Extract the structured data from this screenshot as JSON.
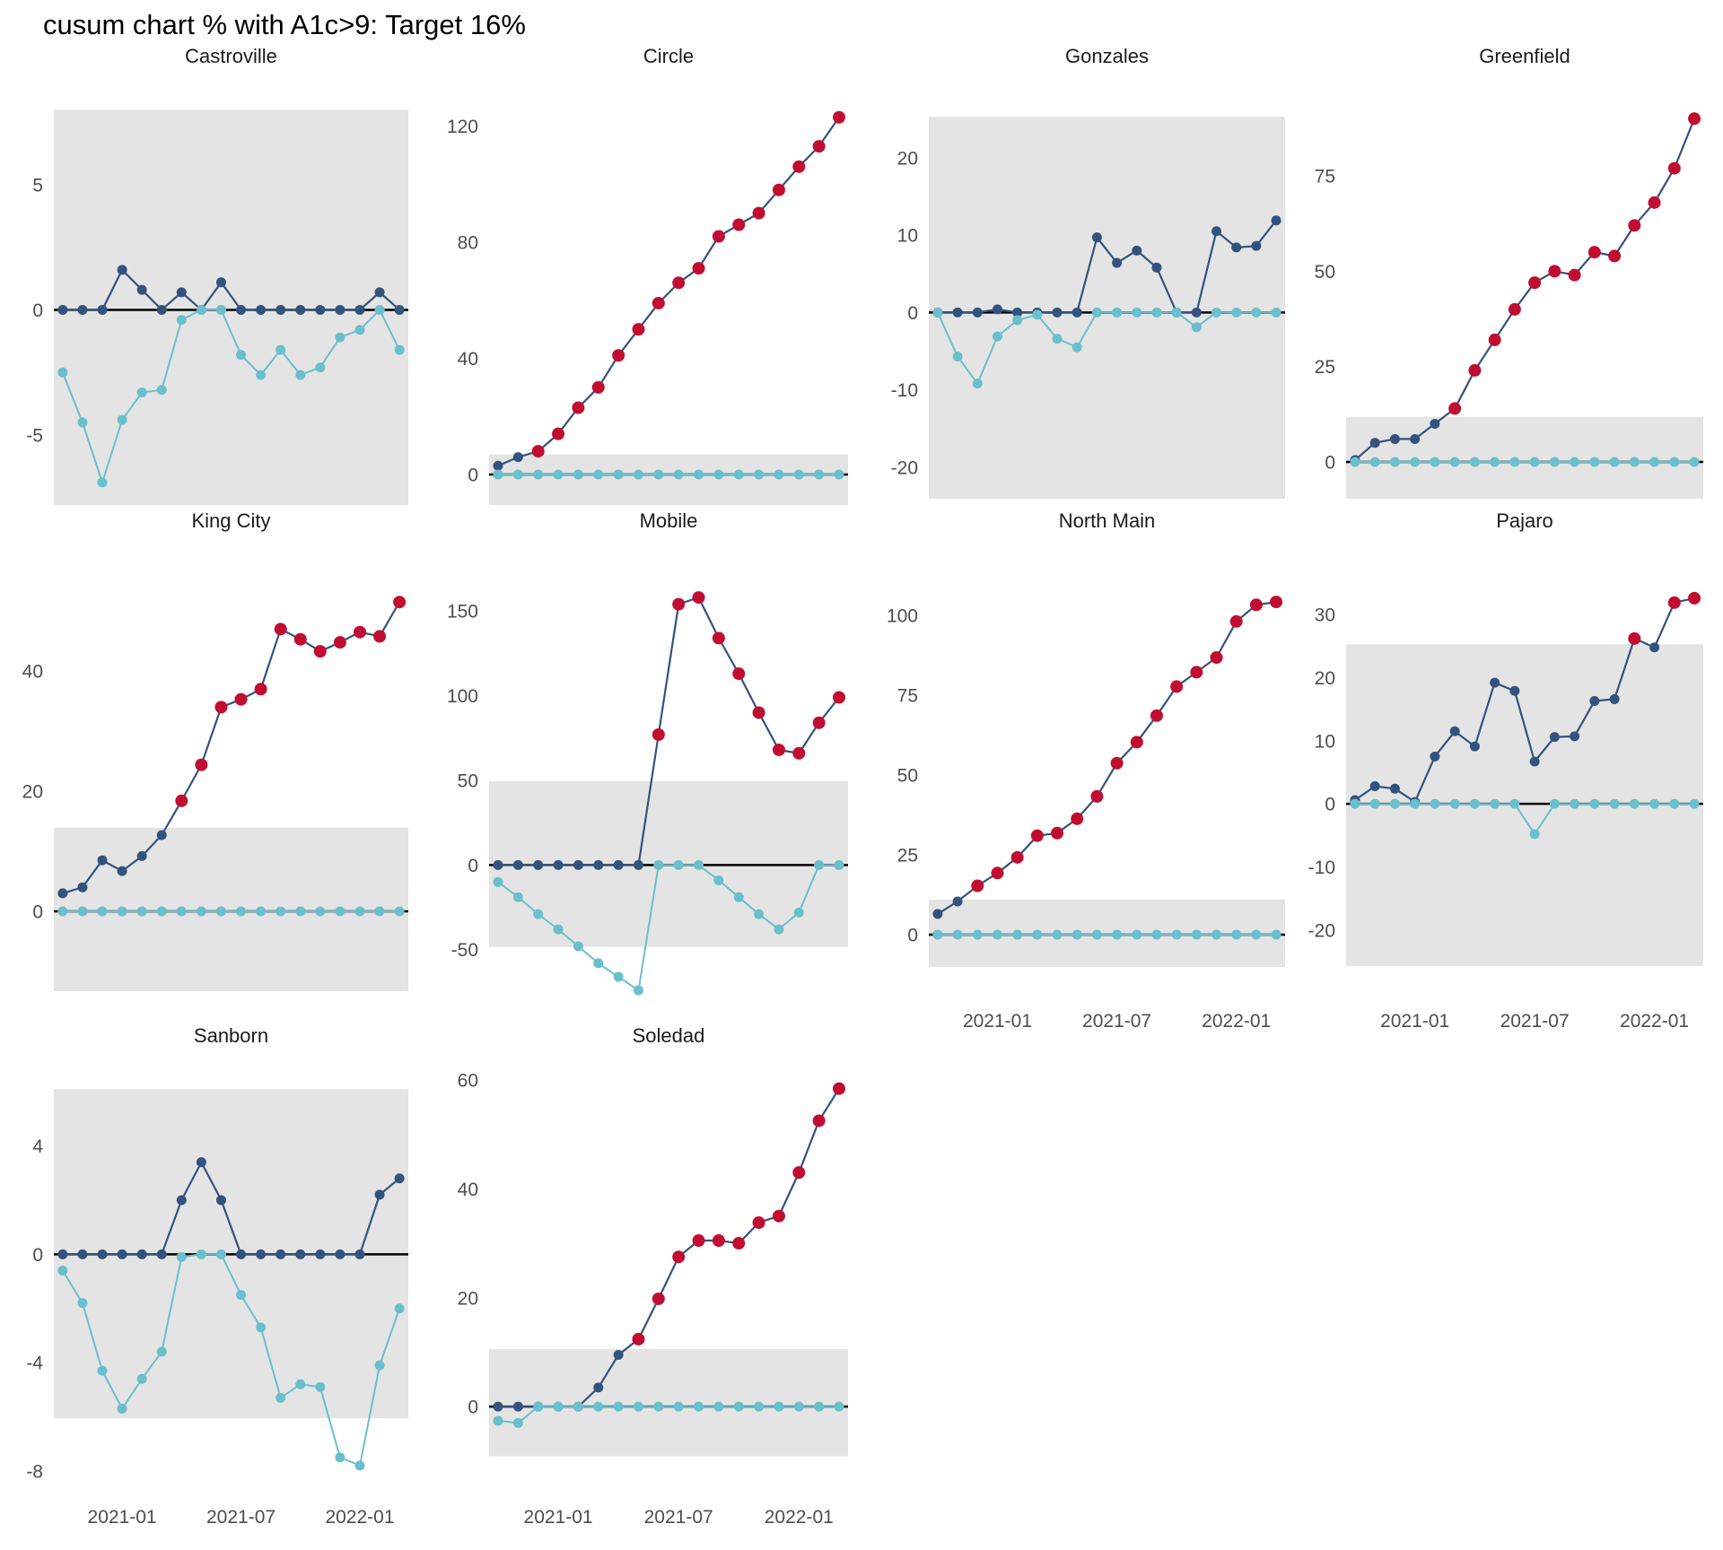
{
  "title": "cusum chart % with A1c>9: Target 16%",
  "colors": {
    "upper_line": "#33527E",
    "lower_line": "#6ABFCD",
    "signal_point": "#C10E30",
    "control_band": "#E4E4E4",
    "zero_line": "#000000",
    "tick_text": "#4D4D4D",
    "facet_title_text": "#1A1A1A"
  },
  "chart_data": {
    "type": "line",
    "title": "cusum chart % with A1c>9: Target 16%",
    "x": [
      "2020-10",
      "2020-11",
      "2020-12",
      "2021-01",
      "2021-02",
      "2021-03",
      "2021-04",
      "2021-05",
      "2021-06",
      "2021-07",
      "2021-08",
      "2021-09",
      "2021-10",
      "2021-11",
      "2021-12",
      "2022-01",
      "2022-02",
      "2022-03"
    ],
    "x_tick_labels": [
      "2021-01",
      "2021-07",
      "2022-01"
    ],
    "x_tick_indices": [
      3,
      9,
      15
    ],
    "grid": "off",
    "legend": "none",
    "signal_rule": "upper cusum points above the control band upper limit are drawn red",
    "facets": [
      {
        "title": "Castroville",
        "col": 0,
        "row": 0,
        "show_x_axis": false,
        "ylim": [
          -7.8,
          8.8
        ],
        "yticks": [
          5,
          0,
          -5
        ],
        "control_band": [
          -7.8,
          8.0
        ],
        "series": [
          {
            "name": "cusum_upper",
            "values": [
              0,
              0,
              0,
              1.6,
              0.8,
              0,
              0.7,
              0,
              1.1,
              0,
              0,
              0,
              0,
              0,
              0,
              0,
              0.7,
              0
            ]
          },
          {
            "name": "cusum_lower",
            "values": [
              -2.5,
              -4.5,
              -6.9,
              -4.4,
              -3.3,
              -3.2,
              -0.4,
              0,
              0,
              -1.8,
              -2.6,
              -1.6,
              -2.6,
              -2.3,
              -1.1,
              -0.8,
              0,
              -1.6
            ]
          }
        ]
      },
      {
        "title": "Circle",
        "col": 1,
        "row": 0,
        "show_x_axis": false,
        "ylim": [
          -10.5,
          132.5
        ],
        "yticks": [
          120,
          80,
          40,
          0
        ],
        "control_band": [
          -10.5,
          6.9
        ],
        "series": [
          {
            "name": "cusum_upper",
            "values": [
              3,
              6,
              8,
              14,
              23,
              30,
              41,
              50,
              59,
              66,
              71,
              82,
              86,
              90,
              98,
              106,
              113,
              123
            ]
          },
          {
            "name": "cusum_lower",
            "values": [
              0,
              0,
              0,
              0,
              0,
              0,
              0,
              0,
              0,
              0,
              0,
              0,
              0,
              0,
              0,
              0,
              0,
              0
            ]
          }
        ]
      },
      {
        "title": "Gonzales",
        "col": 2,
        "row": 0,
        "show_x_axis": false,
        "ylim": [
          -24.9,
          28.8
        ],
        "yticks": [
          20,
          10,
          0,
          -10,
          -20
        ],
        "control_band": [
          -24.1,
          25.3
        ],
        "series": [
          {
            "name": "cusum_upper",
            "values": [
              0,
              0,
              0,
              0.4,
              0,
              0,
              0,
              0,
              9.7,
              6.4,
              8,
              5.8,
              0,
              0,
              10.5,
              8.4,
              8.6,
              11.9
            ]
          },
          {
            "name": "cusum_lower",
            "values": [
              0,
              -5.7,
              -9.2,
              -3.1,
              -1,
              -0.3,
              -3.4,
              -4.5,
              0,
              0,
              0,
              0,
              0,
              -1.9,
              0,
              0,
              0,
              0
            ]
          }
        ]
      },
      {
        "title": "Greenfield",
        "col": 3,
        "row": 0,
        "show_x_axis": false,
        "ylim": [
          -11.3,
          97.6
        ],
        "yticks": [
          75,
          50,
          25,
          0
        ],
        "control_band": [
          -9.7,
          11.8
        ],
        "series": [
          {
            "name": "cusum_upper",
            "values": [
              0.5,
              5,
              6,
              6,
              10,
              14,
              24,
              32,
              40,
              47,
              50,
              49,
              55,
              54,
              62,
              68,
              77,
              90
            ]
          },
          {
            "name": "cusum_lower",
            "values": [
              0,
              0,
              0,
              0,
              0,
              0,
              0,
              0,
              0,
              0,
              0,
              0,
              0,
              0,
              0,
              0,
              0,
              0
            ]
          }
        ]
      },
      {
        "title": "King City",
        "col": 0,
        "row": 1,
        "show_x_axis": false,
        "ylim": [
          -13.3,
          59.6
        ],
        "yticks": [
          40,
          20,
          0
        ],
        "control_band": [
          -13.3,
          13.9
        ],
        "series": [
          {
            "name": "cusum_upper",
            "values": [
              3,
              4,
              8.5,
              6.7,
              9.2,
              12.7,
              18.4,
              24.4,
              34,
              35.3,
              37,
              47,
              45.3,
              43.3,
              44.8,
              46.5,
              45.8,
              51.5
            ]
          },
          {
            "name": "cusum_lower",
            "values": [
              0,
              0,
              0,
              0,
              0,
              0,
              0,
              0,
              0,
              0,
              0,
              0,
              0,
              0,
              0,
              0,
              0,
              0
            ]
          }
        ]
      },
      {
        "title": "Mobile",
        "col": 1,
        "row": 1,
        "show_x_axis": false,
        "ylim": [
          -74.5,
          184
        ],
        "yticks": [
          150,
          100,
          50,
          0,
          -50
        ],
        "control_band": [
          -48.4,
          49.5
        ],
        "series": [
          {
            "name": "cusum_upper",
            "values": [
              0,
              0,
              0,
              0,
              0,
              0,
              0,
              0,
              77,
              154,
              158,
              134,
              113,
              90,
              68,
              66,
              84,
              99
            ]
          },
          {
            "name": "cusum_lower",
            "values": [
              -10,
              -19,
              -29,
              -38,
              -48,
              -58,
              -66,
              -74,
              0,
              0,
              0,
              -9,
              -19,
              -29,
              -38,
              -28,
              0,
              0
            ]
          }
        ]
      },
      {
        "title": "North Main",
        "col": 2,
        "row": 1,
        "show_x_axis": true,
        "ylim": [
          -17.7,
          119.4
        ],
        "yticks": [
          100,
          75,
          50,
          25,
          0
        ],
        "control_band": [
          -10.1,
          11
        ],
        "series": [
          {
            "name": "cusum_upper",
            "values": [
              6.5,
              10.4,
              15.3,
              19.3,
              24.2,
              31,
              31.8,
              36.3,
              43.3,
              53.7,
              60.3,
              68.6,
              77.7,
              82.2,
              86.8,
              98.1,
              103.3,
              104.2
            ]
          },
          {
            "name": "cusum_lower",
            "values": [
              0,
              0,
              0,
              0,
              0,
              0,
              0,
              0,
              0,
              0,
              0,
              0,
              0,
              0,
              0,
              0,
              0,
              0
            ]
          }
        ]
      },
      {
        "title": "Pajaro",
        "col": 3,
        "row": 1,
        "show_x_axis": true,
        "ylim": [
          -29.7,
          39.7
        ],
        "yticks": [
          30,
          20,
          10,
          0,
          -10,
          -20
        ],
        "control_band": [
          -25.7,
          25.3
        ],
        "series": [
          {
            "name": "cusum_upper",
            "values": [
              0.6,
              2.8,
              2.4,
              0.3,
              7.5,
              11.5,
              9.1,
              19.2,
              17.9,
              6.7,
              10.6,
              10.7,
              16.3,
              16.6,
              26.2,
              24.8,
              31.9,
              32.6
            ]
          },
          {
            "name": "cusum_lower",
            "values": [
              0,
              0,
              0,
              0,
              0,
              0,
              0,
              0,
              0,
              -4.8,
              0,
              0,
              0,
              0,
              0,
              0,
              0,
              0
            ]
          }
        ]
      },
      {
        "title": "Sanborn",
        "col": 0,
        "row": 2,
        "show_x_axis": true,
        "ylim": [
          -8.6,
          6.9
        ],
        "yticks": [
          4,
          0,
          -4,
          -8
        ],
        "control_band": [
          -6.05,
          6.1
        ],
        "series": [
          {
            "name": "cusum_upper",
            "values": [
              0,
              0,
              0,
              0,
              0,
              0,
              2,
              3.4,
              2,
              0,
              0,
              0,
              0,
              0,
              0,
              0,
              2.2,
              2.8
            ]
          },
          {
            "name": "cusum_lower",
            "values": [
              -0.6,
              -1.8,
              -4.3,
              -5.7,
              -4.6,
              -3.6,
              -0.1,
              0,
              0,
              -1.5,
              -2.7,
              -5.3,
              -4.8,
              -4.9,
              -7.5,
              -7.8,
              -4.1,
              -2
            ]
          }
        ]
      },
      {
        "title": "Soledad",
        "col": 1,
        "row": 2,
        "show_x_axis": true,
        "ylim": [
          -14.8,
          62.3
        ],
        "yticks": [
          60,
          40,
          20,
          0
        ],
        "control_band": [
          -9.1,
          10.6
        ],
        "series": [
          {
            "name": "cusum_upper",
            "values": [
              0,
              0,
              0,
              0,
              0,
              3.5,
              9.5,
              12.4,
              19.8,
              27.5,
              30.5,
              30.5,
              30,
              33.8,
              35,
              43,
              52.5,
              58.4
            ]
          },
          {
            "name": "cusum_lower",
            "values": [
              -2.6,
              -3,
              0,
              0,
              0,
              0,
              0,
              0,
              0,
              0,
              0,
              0,
              0,
              0,
              0,
              0,
              0,
              0
            ]
          }
        ]
      }
    ]
  }
}
